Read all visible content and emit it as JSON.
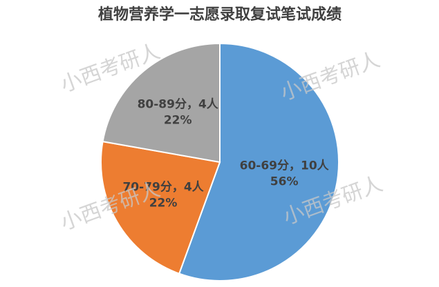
{
  "chart_data": {
    "type": "pie",
    "title": "植物营养学一志愿录取复试笔试成绩",
    "values": [
      10,
      4,
      4
    ],
    "value_labels": [
      "60-69分，10人",
      "70-79分，4人",
      "80-89分，4人"
    ],
    "percentages": [
      56,
      22,
      22
    ],
    "percentage_labels": [
      "56%",
      "22%",
      "22%"
    ],
    "colors": [
      "#5b9bd5",
      "#ed7d31",
      "#a5a5a5"
    ],
    "watermarks": [
      "小西考研人",
      "小西考研人",
      "小西考研人",
      "小西考研人"
    ]
  }
}
